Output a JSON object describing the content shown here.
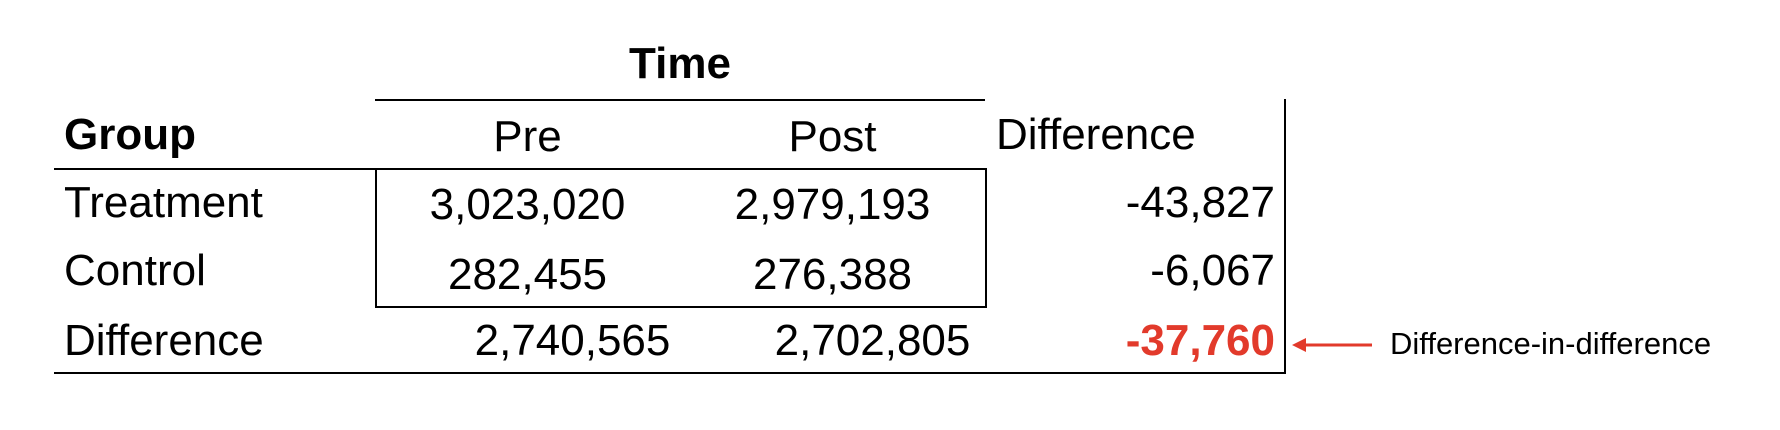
{
  "table": {
    "time_header": "Time",
    "group_header": "Group",
    "columns": {
      "pre": "Pre",
      "post": "Post",
      "difference": "Difference"
    },
    "rows": [
      {
        "group": "Treatment",
        "pre": "3,023,020",
        "post": "2,979,193",
        "difference": "-43,827"
      },
      {
        "group": "Control",
        "pre": "282,455",
        "post": "276,388",
        "difference": "-6,067"
      },
      {
        "group": "Difference",
        "pre": "2,740,565",
        "post": "2,702,805",
        "difference": "-37,760"
      }
    ]
  },
  "annotation": {
    "label": "Difference-in-difference",
    "highlight_color": "#e23a2b"
  }
}
